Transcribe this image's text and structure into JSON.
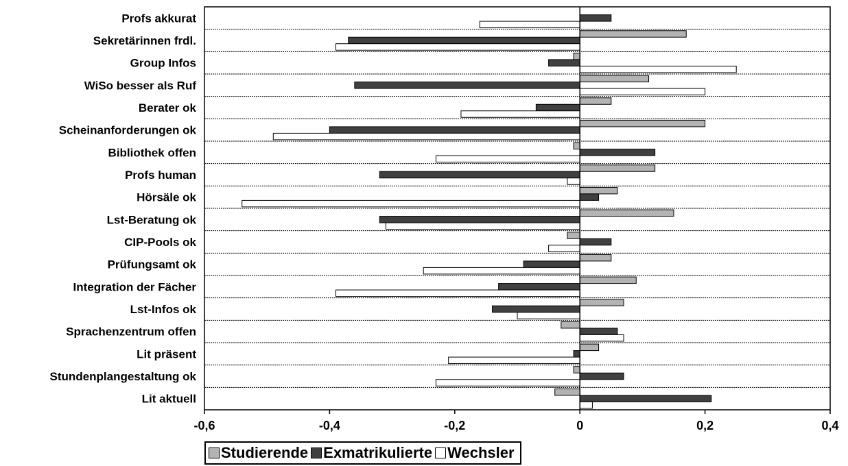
{
  "chart_data": {
    "type": "bar",
    "orientation": "horizontal",
    "title": "",
    "xlabel": "",
    "ylabel": "",
    "xlim": [
      -0.6,
      0.4
    ],
    "xticks": [
      -0.6,
      -0.4,
      -0.2,
      0,
      0.2,
      0.4
    ],
    "xtick_labels": [
      "-0,6",
      "-0,4",
      "-0,2",
      "0",
      "0,2",
      "0,4"
    ],
    "grid": "horizontal dashed lines between categories",
    "legend_position": "bottom",
    "categories": [
      "Profs akkurat",
      "Sekretärinnen frdl.",
      "Group Infos",
      "WiSo besser als Ruf",
      "Berater ok",
      "Scheinanforderungen ok",
      "Bibliothek offen",
      "Profs human",
      "Hörsäle ok",
      "Lst-Beratung ok",
      "CIP-Pools ok",
      "Prüfungsamt ok",
      "Integration der Fächer",
      "Lst-Infos ok",
      "Sprachenzentrum offen",
      "Lit präsent",
      "Stundenplangestaltung ok",
      "Lit aktuell"
    ],
    "series": [
      {
        "name": "Studierende",
        "color": "#b3b3b3",
        "values": [
          0,
          0.17,
          -0.01,
          0.11,
          0.05,
          0.2,
          -0.01,
          0.12,
          0.06,
          0.15,
          -0.02,
          0.05,
          0.09,
          0.07,
          -0.03,
          0.03,
          -0.01,
          -0.04
        ]
      },
      {
        "name": "Exmatrikulierte",
        "color": "#404040",
        "values": [
          0.05,
          -0.37,
          -0.05,
          -0.36,
          -0.07,
          -0.4,
          0.12,
          -0.32,
          0.03,
          -0.32,
          0.05,
          -0.09,
          -0.13,
          -0.14,
          0.06,
          -0.01,
          0.07,
          0.21
        ]
      },
      {
        "name": "Wechsler",
        "color": "#ffffff",
        "values": [
          -0.16,
          -0.39,
          0.25,
          0.2,
          -0.19,
          -0.49,
          -0.23,
          -0.02,
          -0.54,
          -0.31,
          -0.05,
          -0.25,
          -0.39,
          -0.1,
          0.07,
          -0.21,
          -0.23,
          0.02
        ]
      }
    ]
  }
}
